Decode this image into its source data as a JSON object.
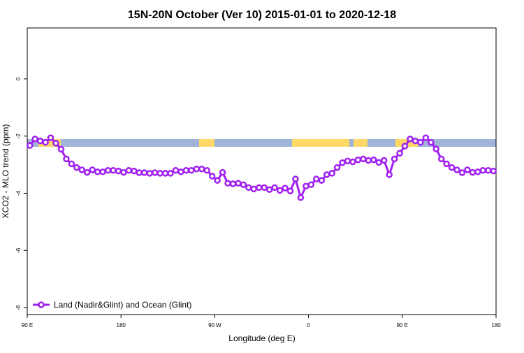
{
  "chart_data": {
    "type": "line",
    "title": "15N-20N October (Ver 10)   2015-01-01 to 2020-12-18",
    "x_label": "Longitude (deg E)",
    "y_label": "XCO2 - MLO trend (ppm)",
    "x": [
      92.5,
      97.5,
      102.5,
      107.5,
      112.5,
      117.5,
      122.5,
      127.5,
      132.5,
      137.5,
      142.5,
      147.5,
      152.5,
      157.5,
      162.5,
      167.5,
      172.5,
      177.5,
      182.5,
      187.5,
      192.5,
      197.5,
      202.5,
      207.5,
      212.5,
      217.5,
      222.5,
      227.5,
      232.5,
      237.5,
      242.5,
      247.5,
      252.5,
      257.5,
      262.5,
      267.5,
      272.5,
      277.5,
      282.5,
      287.5,
      292.5,
      297.5,
      302.5,
      307.5,
      312.5,
      317.5,
      322.5,
      327.5,
      332.5,
      337.5,
      342.5,
      347.5,
      352.5,
      357.5,
      362.5,
      367.5,
      372.5,
      377.5,
      382.5,
      387.5,
      392.5,
      397.5,
      402.5,
      407.5,
      412.5,
      417.5,
      422.5,
      427.5,
      432.5,
      437.5,
      442.5,
      447.5,
      452.5,
      457.5,
      462.5,
      467.5,
      472.5,
      477.5,
      482.5,
      487.5,
      492.5,
      497.5,
      502.5,
      507.5,
      512.5,
      517.5,
      522.5,
      527.5,
      532.5,
      537.5
    ],
    "series": [
      {
        "name": "Land (Nadir&Glint) and Ocean (Glint)",
        "color": "#a020f0",
        "values": [
          -2.33,
          -2.1,
          -2.17,
          -2.22,
          -2.06,
          -2.25,
          -2.46,
          -2.8,
          -2.97,
          -3.1,
          -3.18,
          -3.27,
          -3.18,
          -3.25,
          -3.25,
          -3.2,
          -3.2,
          -3.22,
          -3.27,
          -3.2,
          -3.22,
          -3.28,
          -3.28,
          -3.3,
          -3.28,
          -3.3,
          -3.3,
          -3.3,
          -3.2,
          -3.25,
          -3.2,
          -3.2,
          -3.15,
          -3.15,
          -3.2,
          -3.4,
          -3.55,
          -3.27,
          -3.65,
          -3.67,
          -3.65,
          -3.7,
          -3.8,
          -3.85,
          -3.8,
          -3.8,
          -3.87,
          -3.8,
          -3.9,
          -3.82,
          -3.92,
          -3.5,
          -4.15,
          -3.75,
          -3.7,
          -3.5,
          -3.55,
          -3.35,
          -3.3,
          -3.1,
          -2.93,
          -2.87,
          -2.9,
          -2.83,
          -2.8,
          -2.85,
          -2.83,
          -2.92,
          -2.85,
          -3.35,
          -2.8,
          -2.6,
          -2.35,
          -2.1,
          -2.17,
          -2.22,
          -2.06,
          -2.22,
          -2.45,
          -2.8,
          -2.97,
          -3.1,
          -3.18,
          -3.28,
          -3.18,
          -3.27,
          -3.25,
          -3.2,
          -3.2,
          -3.22
        ]
      }
    ],
    "xlim": [
      90,
      540
    ],
    "xticks": [
      {
        "value": 90,
        "label": "90 E"
      },
      180,
      {
        "value": 270,
        "label": "90 W"
      },
      {
        "value": 360,
        "label": "0"
      },
      {
        "value": 450,
        "label": "90 E"
      },
      {
        "value": 540,
        "label": "180"
      }
    ],
    "ylim": [
      -8.24,
      1.78
    ],
    "yticks": [
      0,
      -2,
      -4,
      -6,
      -8
    ],
    "legend": "bottomleft"
  }
}
